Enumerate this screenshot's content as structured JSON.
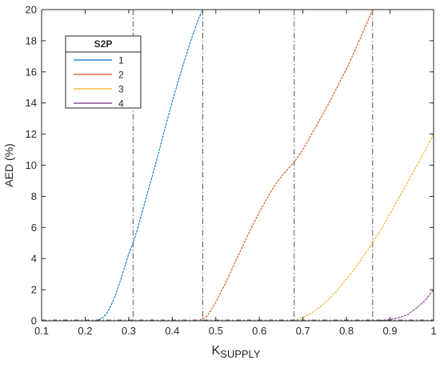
{
  "chart_data": {
    "type": "line",
    "xlabel": "K",
    "xlabel_subscript": "SUPPLY",
    "ylabel": "AED (%)",
    "xlim": [
      0.1,
      1.0
    ],
    "ylim": [
      0,
      20
    ],
    "xticks": [
      0.1,
      0.2,
      0.3,
      0.4,
      0.5,
      0.6,
      0.7,
      0.8,
      0.9,
      1.0
    ],
    "xtick_labels": [
      "0.1",
      "0.2",
      "0.3",
      "0.4",
      "0.5",
      "0.6",
      "0.7",
      "0.8",
      "0.9",
      "1"
    ],
    "yticks": [
      0,
      2,
      4,
      6,
      8,
      10,
      12,
      14,
      16,
      18,
      20
    ],
    "ytick_labels": [
      "0",
      "2",
      "4",
      "6",
      "8",
      "10",
      "12",
      "14",
      "16",
      "18",
      "20"
    ],
    "grid": false,
    "legend": {
      "title": "S2P",
      "placement": "top-left"
    },
    "vertical_reference_lines_x": [
      0.31,
      0.47,
      0.68,
      0.86
    ],
    "series": [
      {
        "name": "1",
        "color": "#0072BD",
        "x": [
          0.1,
          0.22,
          0.23,
          0.24,
          0.25,
          0.26,
          0.27,
          0.28,
          0.29,
          0.3,
          0.31,
          0.32,
          0.34,
          0.36,
          0.38,
          0.4,
          0.42,
          0.44,
          0.46,
          0.47
        ],
        "y": [
          0,
          0,
          0.05,
          0.2,
          0.5,
          1.0,
          1.7,
          2.5,
          3.4,
          4.3,
          5.0,
          5.9,
          7.9,
          9.9,
          12.0,
          14.1,
          16.0,
          17.8,
          19.4,
          20.0
        ]
      },
      {
        "name": "2",
        "color": "#D95319",
        "x": [
          0.1,
          0.46,
          0.48,
          0.5,
          0.52,
          0.54,
          0.56,
          0.58,
          0.6,
          0.62,
          0.64,
          0.66,
          0.68,
          0.7,
          0.72,
          0.74,
          0.76,
          0.78,
          0.8,
          0.82,
          0.84,
          0.86
        ],
        "y": [
          0,
          0,
          0.3,
          1.2,
          2.3,
          3.5,
          4.7,
          5.9,
          7.0,
          8.0,
          8.9,
          9.6,
          10.2,
          11.0,
          12.0,
          13.0,
          14.0,
          15.1,
          16.2,
          17.4,
          18.7,
          20.0
        ]
      },
      {
        "name": "3",
        "color": "#EDB120",
        "x": [
          0.1,
          0.68,
          0.7,
          0.72,
          0.74,
          0.76,
          0.78,
          0.8,
          0.82,
          0.84,
          0.86,
          0.88,
          0.9,
          0.92,
          0.94,
          0.96,
          0.98,
          1.0
        ],
        "y": [
          0,
          0,
          0.2,
          0.5,
          0.9,
          1.4,
          2.0,
          2.7,
          3.4,
          4.2,
          5.0,
          5.9,
          6.9,
          7.9,
          8.9,
          9.9,
          10.9,
          12.0
        ]
      },
      {
        "name": "4",
        "color": "#7E2F8E",
        "x": [
          0.1,
          0.86,
          0.88,
          0.9,
          0.92,
          0.94,
          0.96,
          0.98,
          1.0
        ],
        "y": [
          0,
          0,
          0.02,
          0.08,
          0.2,
          0.4,
          0.8,
          1.3,
          2.0
        ]
      }
    ]
  }
}
